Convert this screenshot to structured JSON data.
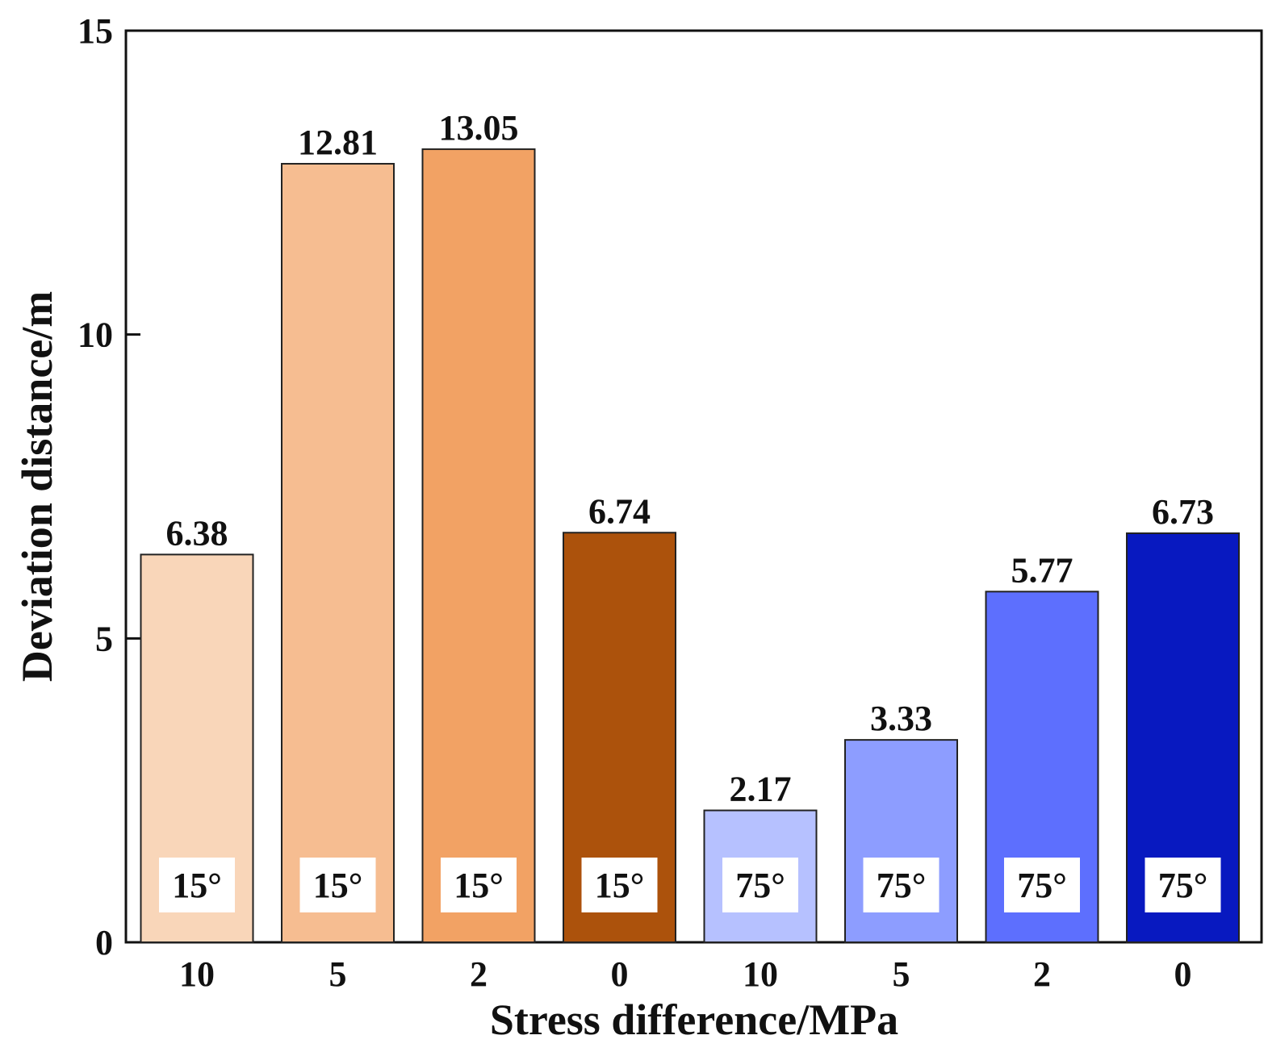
{
  "chart_data": {
    "type": "bar",
    "title": "",
    "xlabel": "Stress difference/MPa",
    "ylabel": "Deviation distance/m",
    "ylim": [
      0,
      15
    ],
    "yticks": [
      "0",
      "5",
      "10",
      "15"
    ],
    "ytick_values": [
      0,
      5,
      10,
      15
    ],
    "grid": false,
    "legend": "none",
    "categories": [
      "10",
      "5",
      "2",
      "0",
      "10",
      "5",
      "2",
      "0"
    ],
    "values": [
      6.38,
      12.81,
      13.05,
      6.74,
      2.17,
      3.33,
      5.77,
      6.73
    ],
    "data_labels": [
      "6.38",
      "12.81",
      "13.05",
      "6.74",
      "2.17",
      "3.33",
      "5.77",
      "6.73"
    ],
    "angles": [
      "15°",
      "15°",
      "15°",
      "15°",
      "75°",
      "75°",
      "75°",
      "75°"
    ],
    "colors": [
      "#f9d6b9",
      "#f6bd91",
      "#f2a264",
      "#ac520c",
      "#b6c1ff",
      "#8d9dff",
      "#5d6ffe",
      "#0819c0"
    ]
  }
}
